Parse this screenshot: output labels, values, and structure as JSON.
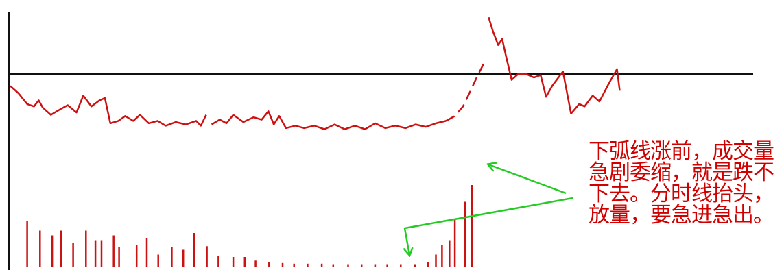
{
  "chart_data": {
    "type": "line",
    "title": "",
    "xlabel": "",
    "ylabel": "",
    "grid": false,
    "legend": "none",
    "baseline_y": 0,
    "ylim": [
      -5.2,
      2.2
    ],
    "xlim": [
      0,
      100
    ],
    "series": [
      {
        "style": "solid",
        "color": "#cc1111",
        "points": [
          [
            0,
            -0.8
          ],
          [
            1.2,
            -1.1
          ],
          [
            2.5,
            -1.55
          ],
          [
            3.5,
            -1.65
          ],
          [
            4.2,
            -1.4
          ],
          [
            4.8,
            -1.7
          ],
          [
            6.0,
            -2.0
          ],
          [
            7.5,
            -1.75
          ],
          [
            8.5,
            -1.6
          ],
          [
            9.8,
            -1.9
          ],
          [
            10.8,
            -1.2
          ],
          [
            12.0,
            -1.65
          ],
          [
            13.2,
            -1.4
          ],
          [
            14.0,
            -1.3
          ],
          [
            14.8,
            -2.35
          ],
          [
            16.0,
            -2.25
          ],
          [
            17.0,
            -2.05
          ],
          [
            18.2,
            -2.25
          ],
          [
            19.2,
            -2.0
          ],
          [
            20.5,
            -2.35
          ],
          [
            21.8,
            -2.25
          ],
          [
            23.0,
            -2.45
          ],
          [
            24.5,
            -2.3
          ],
          [
            26.0,
            -2.4
          ],
          [
            27.5,
            -2.25
          ],
          [
            28.2,
            -2.45
          ],
          [
            29.0,
            -2.0
          ]
        ]
      },
      {
        "style": "solid",
        "color": "#cc1111",
        "points": [
          [
            29.8,
            -2.4
          ],
          [
            31.0,
            -2.2
          ],
          [
            32.0,
            -2.35
          ],
          [
            33.0,
            -2.0
          ],
          [
            34.5,
            -2.3
          ],
          [
            36.0,
            -2.1
          ],
          [
            37.2,
            -2.2
          ],
          [
            38.2,
            -1.85
          ],
          [
            39.0,
            -2.4
          ],
          [
            39.8,
            -2.05
          ],
          [
            40.8,
            -2.55
          ],
          [
            42.2,
            -2.45
          ],
          [
            43.5,
            -2.55
          ],
          [
            45.0,
            -2.45
          ],
          [
            46.5,
            -2.6
          ],
          [
            48.0,
            -2.4
          ],
          [
            49.5,
            -2.6
          ],
          [
            51.0,
            -2.45
          ],
          [
            52.5,
            -2.6
          ],
          [
            54.0,
            -2.35
          ],
          [
            55.5,
            -2.55
          ],
          [
            57.0,
            -2.45
          ],
          [
            58.5,
            -2.55
          ],
          [
            60.0,
            -2.4
          ],
          [
            61.5,
            -2.5
          ],
          [
            63.0,
            -2.35
          ],
          [
            64.5,
            -2.25
          ]
        ]
      },
      {
        "style": "dashed",
        "color": "#cc1111",
        "points": [
          [
            64.5,
            -2.25
          ],
          [
            65.8,
            -2.05
          ],
          [
            67.0,
            -1.65
          ],
          [
            68.2,
            -0.95
          ],
          [
            69.2,
            -0.35
          ],
          [
            70.2,
            0.2
          ]
        ]
      },
      {
        "style": "solid",
        "color": "#cc1111",
        "points": [
          [
            70.8,
            2.05
          ],
          [
            71.4,
            1.5
          ],
          [
            72.2,
            0.9
          ],
          [
            72.8,
            1.15
          ],
          [
            73.4,
            0.4
          ],
          [
            74.2,
            -0.55
          ],
          [
            75.2,
            -0.3
          ],
          [
            76.3,
            -0.3
          ],
          [
            77.5,
            -0.45
          ],
          [
            78.5,
            -0.35
          ],
          [
            79.3,
            -1.25
          ],
          [
            80.2,
            -0.8
          ],
          [
            81.8,
            -0.2
          ],
          [
            83.0,
            -1.95
          ],
          [
            84.2,
            -1.55
          ],
          [
            85.0,
            -1.65
          ],
          [
            86.2,
            -1.2
          ],
          [
            87.2,
            -1.45
          ],
          [
            88.5,
            -0.75
          ],
          [
            89.8,
            -0.1
          ],
          [
            90.2,
            -1.0
          ]
        ]
      }
    ],
    "volume": {
      "color": "#cc1111",
      "bars": [
        [
          2.5,
          1.9
        ],
        [
          4.4,
          1.5
        ],
        [
          6.2,
          1.3
        ],
        [
          7.5,
          1.5
        ],
        [
          9.3,
          1.0
        ],
        [
          11.2,
          1.5
        ],
        [
          12.6,
          1.1
        ],
        [
          13.5,
          1.1
        ],
        [
          15.3,
          1.3
        ],
        [
          16.1,
          0.8
        ],
        [
          18.7,
          0.9
        ],
        [
          20.2,
          1.2
        ],
        [
          21.9,
          0.5
        ],
        [
          23.9,
          0.8
        ],
        [
          25.6,
          0.7
        ],
        [
          27.2,
          1.4
        ],
        [
          29.1,
          0.85
        ],
        [
          30.8,
          0.45
        ],
        [
          33.0,
          0.4
        ],
        [
          34.7,
          0.4
        ],
        [
          36.3,
          0.25
        ],
        [
          38.3,
          0.2
        ],
        [
          40.3,
          0.15
        ],
        [
          42.0,
          0.12
        ],
        [
          44.0,
          0.12
        ],
        [
          46.1,
          0.12
        ],
        [
          47.8,
          0.1
        ],
        [
          50.0,
          0.1
        ],
        [
          52.0,
          0.1
        ],
        [
          54.0,
          0.1
        ],
        [
          55.8,
          0.1
        ],
        [
          57.8,
          0.1
        ],
        [
          59.9,
          0.1
        ],
        [
          61.8,
          0.2
        ],
        [
          63.0,
          0.5
        ],
        [
          63.9,
          0.9
        ],
        [
          65.0,
          1.1
        ],
        [
          65.8,
          2.0
        ],
        [
          67.3,
          2.7
        ],
        [
          68.3,
          3.4
        ]
      ]
    },
    "arrows_color": "#22cc22",
    "annotation": {
      "text": "下弧线涨前，成交量\n急剧委缩，就是跌不\n下去。分时线抬头，\n放量，要急进急出。",
      "color": "#d10000"
    }
  }
}
